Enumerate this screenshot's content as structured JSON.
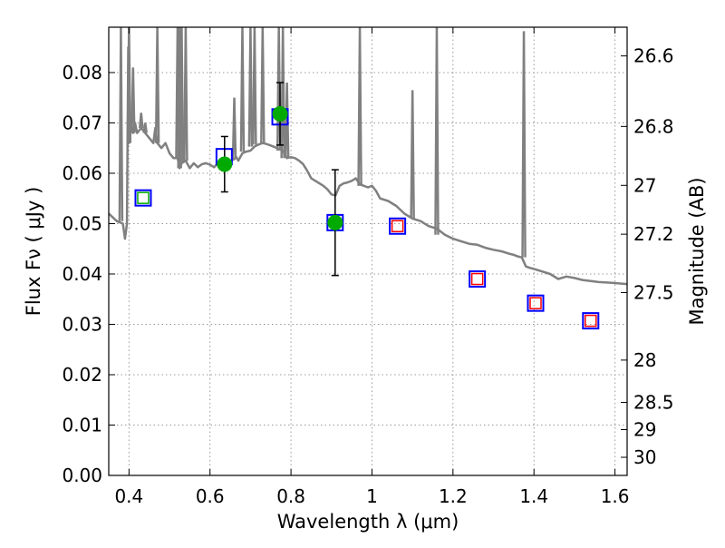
{
  "chart_data": {
    "type": "scatter",
    "xlabel": "Wavelength  λ (μm)",
    "ylabel": "Flux  Fν  ( μJy )",
    "ylabel_right": "Magnitude (AB)",
    "xlim": [
      0.35,
      1.63
    ],
    "ylim": [
      0.0,
      0.089
    ],
    "x_ticks": [
      0.4,
      0.6,
      0.8,
      1.0,
      1.2,
      1.4,
      1.6
    ],
    "x_tick_labels": [
      "0.4",
      "0.6",
      "0.8",
      "1",
      "1.2",
      "1.4",
      "1.6"
    ],
    "y_ticks": [
      0.0,
      0.01,
      0.02,
      0.03,
      0.04,
      0.05,
      0.06,
      0.07,
      0.08
    ],
    "y_tick_labels": [
      "0.00",
      "0.01",
      "0.02",
      "0.03",
      "0.04",
      "0.05",
      "0.06",
      "0.07",
      "0.08"
    ],
    "right_ticks": [
      {
        "flux": 0.0833,
        "label": "26.6"
      },
      {
        "flux": 0.0693,
        "label": "26.8"
      },
      {
        "flux": 0.0576,
        "label": "27"
      },
      {
        "flux": 0.0479,
        "label": "27.2"
      },
      {
        "flux": 0.0363,
        "label": "27.5"
      },
      {
        "flux": 0.0229,
        "label": "28"
      },
      {
        "flux": 0.0145,
        "label": "28.5"
      },
      {
        "flux": 0.0091,
        "label": "29"
      },
      {
        "flux": 0.0036,
        "label": "30"
      }
    ],
    "grid": true,
    "colors": {
      "model": "#808080",
      "observed": "#00aa00",
      "model_box": "#0000ff",
      "inner_red": "#ff0000",
      "inner_green": "#00aa00",
      "errorbar": "#000000"
    },
    "series": [
      {
        "kind": "line",
        "x": [
          0.35,
          0.37,
          0.385,
          0.39,
          0.395,
          0.398,
          0.4,
          0.405,
          0.41,
          0.415,
          0.42,
          0.43,
          0.44,
          0.45,
          0.46,
          0.465,
          0.47,
          0.48,
          0.49,
          0.5,
          0.51,
          0.52,
          0.525,
          0.53,
          0.54,
          0.55,
          0.56,
          0.57,
          0.58,
          0.59,
          0.6,
          0.61,
          0.62,
          0.63,
          0.64,
          0.65,
          0.66,
          0.665,
          0.67,
          0.68,
          0.69,
          0.7,
          0.71,
          0.72,
          0.73,
          0.74,
          0.75,
          0.76,
          0.77,
          0.78,
          0.79,
          0.8,
          0.81,
          0.82,
          0.83,
          0.84,
          0.85,
          0.86,
          0.87,
          0.88,
          0.89,
          0.9,
          0.91,
          0.92,
          0.93,
          0.94,
          0.95,
          0.96,
          0.97,
          0.98,
          0.99,
          1.0,
          1.01,
          1.02,
          1.04,
          1.06,
          1.08,
          1.1,
          1.12,
          1.14,
          1.16,
          1.18,
          1.2,
          1.22,
          1.24,
          1.26,
          1.28,
          1.3,
          1.32,
          1.34,
          1.35,
          1.36,
          1.37,
          1.38,
          1.39,
          1.4,
          1.42,
          1.44,
          1.46,
          1.48,
          1.5,
          1.52,
          1.54,
          1.56,
          1.58,
          1.6,
          1.63
        ],
        "y": [
          0.052,
          0.0505,
          0.05,
          0.047,
          0.05,
          0.085,
          0.066,
          0.07,
          0.068,
          0.07,
          0.068,
          0.069,
          0.068,
          0.067,
          0.066,
          0.069,
          0.066,
          0.065,
          0.066,
          0.064,
          0.063,
          0.063,
          0.061,
          0.062,
          0.0625,
          0.061,
          0.062,
          0.0612,
          0.0618,
          0.062,
          0.0617,
          0.0612,
          0.062,
          0.0622,
          0.0621,
          0.0624,
          0.0628,
          0.0632,
          0.0625,
          0.064,
          0.0643,
          0.0645,
          0.0653,
          0.0657,
          0.066,
          0.0658,
          0.0655,
          0.0652,
          0.0648,
          0.0645,
          0.063,
          0.0632,
          0.063,
          0.0625,
          0.0618,
          0.0605,
          0.059,
          0.0585,
          0.058,
          0.0575,
          0.0568,
          0.0558,
          0.0556,
          0.0575,
          0.058,
          0.0582,
          0.0585,
          0.059,
          0.0578,
          0.0575,
          0.0572,
          0.0575,
          0.0565,
          0.055,
          0.0545,
          0.0535,
          0.052,
          0.051,
          0.0505,
          0.0495,
          0.049,
          0.0478,
          0.047,
          0.0465,
          0.046,
          0.0458,
          0.0452,
          0.0448,
          0.0445,
          0.044,
          0.0438,
          0.0435,
          0.0433,
          0.0415,
          0.0412,
          0.041,
          0.0405,
          0.04,
          0.039,
          0.0395,
          0.0392,
          0.0388,
          0.0386,
          0.0384,
          0.0383,
          0.0382,
          0.038
        ]
      },
      {
        "kind": "emission_lines",
        "x": [
          0.38,
          0.4,
          0.41,
          0.43,
          0.44,
          0.47,
          0.52,
          0.525,
          0.53,
          0.54,
          0.66,
          0.68,
          0.7,
          0.71,
          0.73,
          0.77,
          0.78,
          0.79,
          0.97,
          1.1,
          1.16,
          1.375
        ],
        "peak": [
          0.089,
          0.089,
          0.081,
          0.072,
          0.07,
          0.089,
          0.089,
          0.089,
          0.089,
          0.089,
          0.075,
          0.089,
          0.089,
          0.089,
          0.089,
          0.089,
          0.089,
          0.078,
          0.089,
          0.0765,
          0.089,
          0.0882
        ],
        "base": [
          0.0505,
          0.066,
          0.068,
          0.069,
          0.068,
          0.066,
          0.063,
          0.061,
          0.062,
          0.0625,
          0.0628,
          0.0643,
          0.0653,
          0.0657,
          0.066,
          0.0645,
          0.063,
          0.0632,
          0.0575,
          0.051,
          0.0478,
          0.0433
        ]
      },
      {
        "kind": "model_photometry",
        "x": [
          0.435,
          0.635,
          0.773,
          0.909,
          1.063,
          1.26,
          1.404,
          1.54
        ],
        "y": [
          0.0551,
          0.0633,
          0.0712,
          0.0502,
          0.0495,
          0.039,
          0.0342,
          0.0307
        ],
        "inner": [
          "green",
          "none",
          "none",
          "none",
          "red",
          "red",
          "red",
          "red"
        ]
      },
      {
        "kind": "observed",
        "x": [
          0.636,
          0.773,
          0.909
        ],
        "y": [
          0.0618,
          0.0718,
          0.0502
        ],
        "yerr": [
          0.0055,
          0.0062,
          0.0105
        ]
      }
    ]
  }
}
